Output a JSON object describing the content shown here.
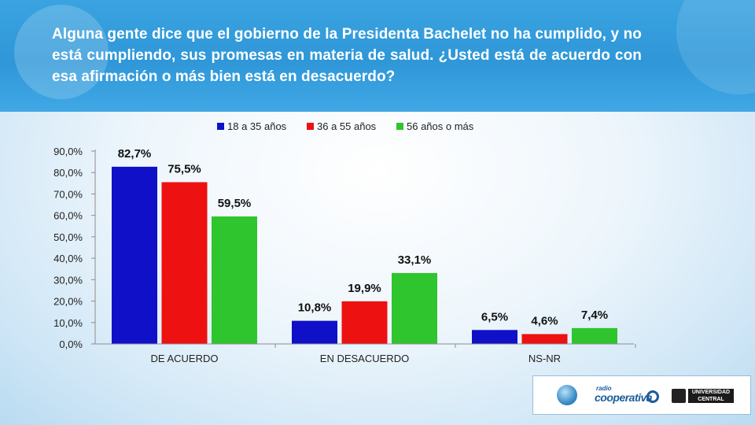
{
  "header": {
    "question": "Alguna gente dice que el gobierno de la Presidenta Bachelet no ha cumplido, y no está cumpliendo, sus promesas en materia de salud. ¿Usted está de acuerdo con esa afirmación o más bien está en desacuerdo?"
  },
  "chart_data": {
    "type": "bar",
    "categories": [
      "DE ACUERDO",
      "EN DESACUERDO",
      "NS-NR"
    ],
    "series": [
      {
        "name": "18 a 35 años",
        "color": "#1010c8",
        "values": [
          82.7,
          10.8,
          6.5
        ],
        "labels": [
          "82,7%",
          "10,8%",
          "6,5%"
        ]
      },
      {
        "name": "36 a 55 años",
        "color": "#ee1111",
        "values": [
          75.5,
          19.9,
          4.6
        ],
        "labels": [
          "75,5%",
          "19,9%",
          "4,6%"
        ]
      },
      {
        "name": "56 años o más",
        "color": "#2ec52e",
        "values": [
          59.5,
          33.1,
          7.4
        ],
        "labels": [
          "59,5%",
          "33,1%",
          "7,4%"
        ]
      }
    ],
    "yticks": [
      "0,0%",
      "10,0%",
      "20,0%",
      "30,0%",
      "40,0%",
      "50,0%",
      "60,0%",
      "70,0%",
      "80,0%",
      "90,0%"
    ],
    "ylim": [
      0,
      90
    ],
    "grid": false,
    "legend_position": "top"
  },
  "logos": {
    "radio_small": "radio",
    "cooperativa": "cooperativa",
    "universidad": "UNIVERSIDAD CENTRAL"
  }
}
